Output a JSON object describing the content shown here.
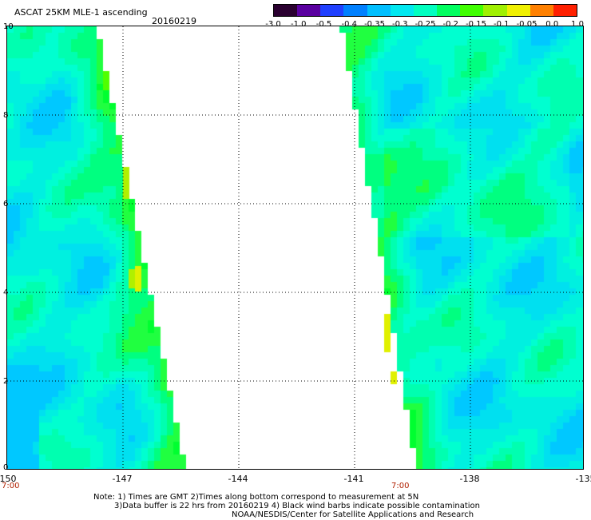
{
  "header": {
    "title": "ASCAT 25KM MLE-1 ascending",
    "date": "20160219"
  },
  "colorbar": {
    "labels": [
      "-3.0",
      "-1.0",
      "-0.5",
      "-0.4",
      "-0.35",
      "-0.3",
      "-0.25",
      "-0.2",
      "-0.15",
      "-0.1",
      "-0.05",
      "0.0",
      "1.0"
    ],
    "colors": [
      "#2a0030",
      "#5a00a0",
      "#2040ff",
      "#0080ff",
      "#00bfff",
      "#00e8f0",
      "#00ffc0",
      "#00ff60",
      "#40ff00",
      "#a0f000",
      "#f0f000",
      "#ff8000",
      "#ff2000"
    ]
  },
  "axes": {
    "x_ticks": [
      "-150",
      "-147",
      "-144",
      "-141",
      "-138",
      "-135"
    ],
    "y_ticks": [
      "10",
      "8",
      "6",
      "4",
      "2",
      "0"
    ],
    "times": [
      "7:00",
      "7:00"
    ]
  },
  "notes": {
    "line1": "Note: 1) Times are GMT 2)Times along bottom correspond to measurement at 5N",
    "line2": "3)Data buffer is 22 hrs from 20160219 4) Black wind barbs indicate possible contamination",
    "line3": "NOAA/NESDIS/Center for Satellite Applications and Research"
  }
}
